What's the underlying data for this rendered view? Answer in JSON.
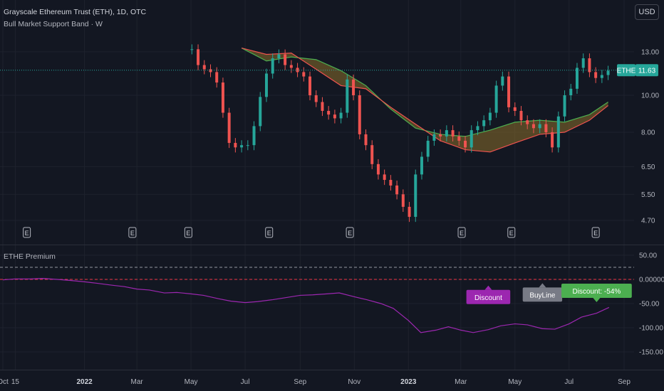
{
  "header": {
    "symbol_title": "Grayscale Ethereum Trust (ETH), 1D, OTC",
    "indicator_title": "Bull Market Support Band · W",
    "currency_button": "USD"
  },
  "price_badge": {
    "ticker": "ETHE",
    "value": "11.63"
  },
  "premium_pane": {
    "title": "ETHE Premium"
  },
  "annotations": [
    {
      "text": "Discount",
      "color": "#9c27b0"
    },
    {
      "text": "BuyLine",
      "color": "#787b86"
    },
    {
      "text": "Discount: -54%",
      "color": "#4caf50"
    }
  ],
  "earnings_marker_label": "E",
  "chart_data": [
    {
      "type": "line",
      "panel": "price",
      "scale": "log",
      "y_ticks": [
        "13.00",
        "10.00",
        "8.00",
        "6.50",
        "5.50",
        "4.70"
      ],
      "current_price": 11.63,
      "x_ticks": [
        "Oct",
        "15",
        "2022",
        "Mar",
        "May",
        "Jul",
        "Sep",
        "Nov",
        "2023",
        "Mar",
        "May",
        "Jul",
        "Sep"
      ],
      "series": [
        {
          "kind": "close",
          "colors": {
            "up": "#26a69a",
            "down": "#ef5350"
          },
          "x": [
            "2022-05-02",
            "2022-05-09",
            "2022-05-16",
            "2022-05-23",
            "2022-05-30",
            "2022-06-06",
            "2022-06-13",
            "2022-06-20",
            "2022-06-27",
            "2022-07-04",
            "2022-07-11",
            "2022-07-18",
            "2022-07-25",
            "2022-08-01",
            "2022-08-08",
            "2022-08-15",
            "2022-08-22",
            "2022-08-29",
            "2022-09-05",
            "2022-09-12",
            "2022-09-19",
            "2022-09-26",
            "2022-10-03",
            "2022-10-10",
            "2022-10-17",
            "2022-10-24",
            "2022-10-31",
            "2022-11-07",
            "2022-11-14",
            "2022-11-21",
            "2022-11-28",
            "2022-12-05",
            "2022-12-12",
            "2022-12-19",
            "2022-12-26",
            "2023-01-02",
            "2023-01-09",
            "2023-01-16",
            "2023-01-23",
            "2023-01-30",
            "2023-02-06",
            "2023-02-13",
            "2023-02-20",
            "2023-02-27",
            "2023-03-06",
            "2023-03-13",
            "2023-03-20",
            "2023-03-27",
            "2023-04-03",
            "2023-04-10",
            "2023-04-17",
            "2023-04-24",
            "2023-05-01",
            "2023-05-08",
            "2023-05-15",
            "2023-05-22",
            "2023-05-29",
            "2023-06-05",
            "2023-06-12",
            "2023-06-19",
            "2023-06-26",
            "2023-07-03",
            "2023-07-10",
            "2023-07-17",
            "2023-07-24",
            "2023-07-31",
            "2023-08-07",
            "2023-08-14"
          ],
          "values": [
            13.2,
            12.0,
            11.7,
            11.5,
            10.8,
            9.0,
            7.5,
            7.3,
            7.4,
            7.4,
            8.3,
            9.9,
            11.4,
            12.5,
            12.8,
            12.0,
            11.8,
            11.5,
            11.2,
            10.0,
            9.6,
            9.1,
            8.9,
            8.7,
            9.0,
            11.0,
            10.0,
            7.9,
            7.4,
            6.6,
            6.2,
            6.0,
            5.8,
            5.5,
            5.1,
            4.8,
            6.2,
            6.9,
            7.6,
            7.9,
            7.8,
            8.1,
            7.8,
            7.6,
            7.3,
            8.1,
            8.3,
            8.6,
            9.0,
            10.6,
            11.2,
            9.3,
            9.1,
            8.6,
            8.4,
            8.2,
            8.4,
            8.0,
            7.3,
            8.8,
            10.0,
            10.4,
            11.8,
            12.5,
            11.5,
            11.1,
            11.3,
            11.6
          ]
        },
        {
          "kind": "band_upper",
          "color": "#4caf50",
          "x": [
            "2022-06-27",
            "2022-07-25",
            "2022-08-22",
            "2022-09-19",
            "2022-10-17",
            "2022-11-14",
            "2022-12-12",
            "2023-01-09",
            "2023-02-06",
            "2023-03-06",
            "2023-04-03",
            "2023-05-01",
            "2023-05-29",
            "2023-06-26",
            "2023-07-24",
            "2023-08-14"
          ],
          "values": [
            13.3,
            12.3,
            12.6,
            12.4,
            11.6,
            10.6,
            9.2,
            8.2,
            7.9,
            7.8,
            8.1,
            8.5,
            8.6,
            8.5,
            8.9,
            9.6
          ]
        },
        {
          "kind": "band_lower",
          "color": "#ef5350",
          "x": [
            "2022-06-27",
            "2022-07-25",
            "2022-08-22",
            "2022-09-19",
            "2022-10-17",
            "2022-11-14",
            "2022-12-12",
            "2023-01-09",
            "2023-02-06",
            "2023-03-06",
            "2023-04-03",
            "2023-05-01",
            "2023-05-29",
            "2023-06-26",
            "2023-07-24",
            "2023-08-14"
          ],
          "values": [
            13.3,
            12.8,
            12.9,
            11.7,
            10.6,
            10.4,
            9.3,
            8.4,
            7.6,
            7.2,
            7.1,
            7.5,
            7.9,
            8.0,
            8.6,
            9.4
          ]
        }
      ],
      "earnings_markers": [
        "2021-10-28",
        "2022-02-24",
        "2022-04-28",
        "2022-07-28",
        "2022-10-27",
        "2023-03-02",
        "2023-04-27",
        "2023-07-31"
      ]
    },
    {
      "type": "line",
      "panel": "premium",
      "title": "ETHE Premium",
      "y_ticks": [
        "50.00",
        "0.000000",
        "-50.00",
        "-100.00",
        "-150.00"
      ],
      "reference_lines": [
        {
          "value": 25,
          "style": "dashed",
          "color": "#9598a1"
        },
        {
          "value": 0,
          "style": "dashed",
          "color": "#f23645"
        }
      ],
      "series": [
        {
          "color": "#9c27b0",
          "x": [
            "2021-10-01",
            "2021-10-15",
            "2021-11-01",
            "2021-11-15",
            "2021-12-01",
            "2021-12-15",
            "2022-01-01",
            "2022-01-15",
            "2022-02-01",
            "2022-02-15",
            "2022-03-01",
            "2022-03-15",
            "2022-04-01",
            "2022-04-15",
            "2022-05-01",
            "2022-05-15",
            "2022-06-01",
            "2022-06-15",
            "2022-07-01",
            "2022-07-15",
            "2022-08-01",
            "2022-08-15",
            "2022-09-01",
            "2022-09-15",
            "2022-10-01",
            "2022-10-15",
            "2022-11-01",
            "2022-11-15",
            "2022-12-01",
            "2022-12-15",
            "2023-01-01",
            "2023-01-15",
            "2023-02-01",
            "2023-02-15",
            "2023-03-01",
            "2023-03-15",
            "2023-04-01",
            "2023-04-15",
            "2023-05-01",
            "2023-05-15",
            "2023-06-01",
            "2023-06-15",
            "2023-07-01",
            "2023-07-15",
            "2023-08-01",
            "2023-08-15"
          ],
          "values": [
            -1,
            1,
            1,
            2,
            0,
            -2,
            -5,
            -8,
            -12,
            -15,
            -20,
            -22,
            -28,
            -27,
            -30,
            -33,
            -40,
            -45,
            -48,
            -46,
            -42,
            -38,
            -33,
            -32,
            -30,
            -28,
            -36,
            -42,
            -50,
            -60,
            -85,
            -110,
            -105,
            -98,
            -105,
            -110,
            -104,
            -96,
            -92,
            -94,
            -102,
            -103,
            -92,
            -78,
            -70,
            -58
          ]
        }
      ]
    }
  ]
}
